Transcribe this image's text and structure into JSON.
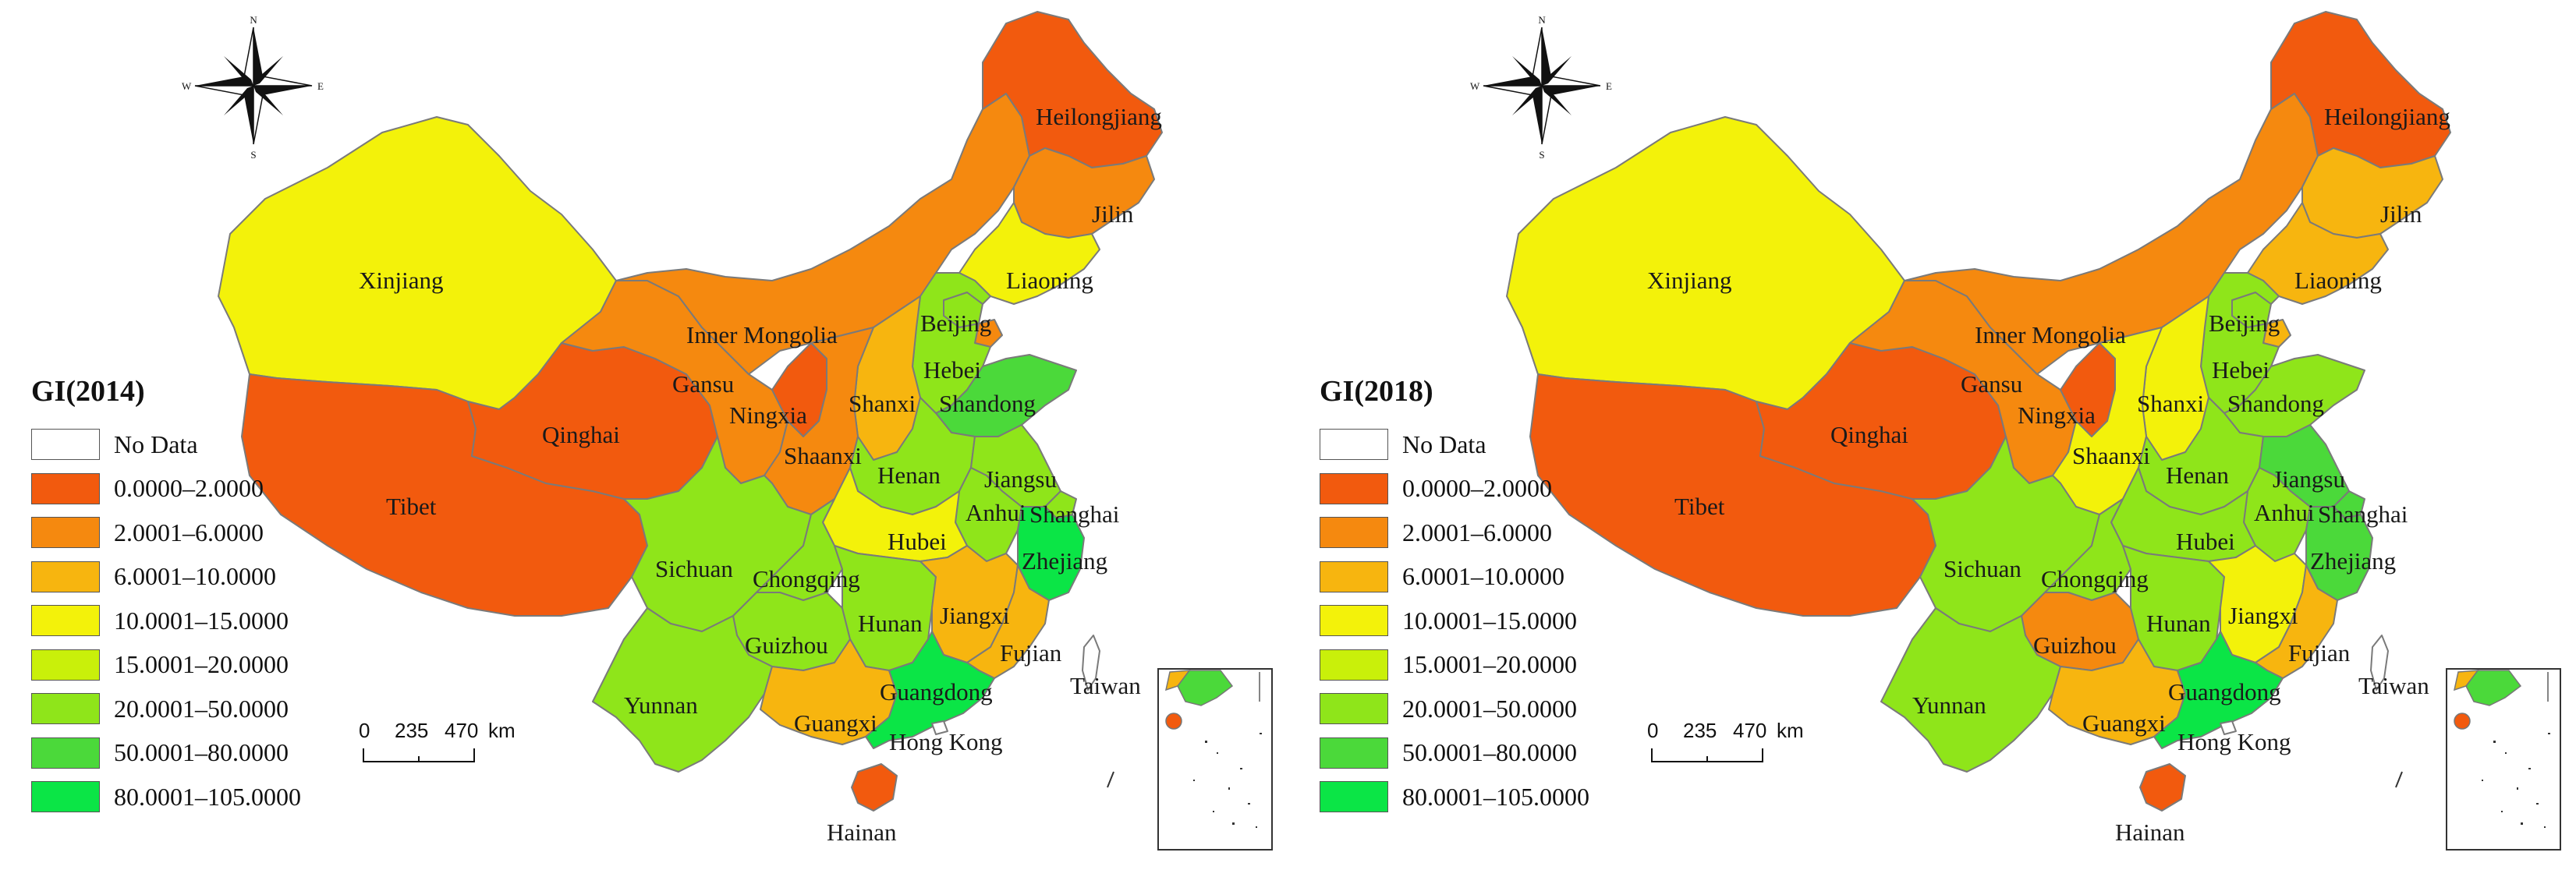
{
  "legend_items": [
    {
      "label": "No Data",
      "color": "#ffffff"
    },
    {
      "label": "0.0000–2.0000",
      "color": "#f25a0e"
    },
    {
      "label": "2.0001–6.0000",
      "color": "#f5890f"
    },
    {
      "label": "6.0001–10.0000",
      "color": "#f7b50f"
    },
    {
      "label": "10.0001–15.0000",
      "color": "#f3f20a"
    },
    {
      "label": "15.0001–20.0000",
      "color": "#c9f00a"
    },
    {
      "label": "20.0001–50.0000",
      "color": "#8fe51a"
    },
    {
      "label": "50.0001–80.0000",
      "color": "#4bd93a"
    },
    {
      "label": "80.0001–105.0000",
      "color": "#0be546"
    }
  ],
  "scale_bar": {
    "tick_0": "0",
    "tick_1": "235",
    "tick_2": "470",
    "unit": "km"
  },
  "north_arrow": {
    "n": "N",
    "s": "S",
    "e": "E",
    "w": "W",
    "icon": "compass-rose-icon"
  },
  "maps": [
    {
      "title": "GI(2014)",
      "provinces": {
        "Xinjiang": {
          "label": "Xinjiang",
          "class_index": 4
        },
        "Tibet": {
          "label": "Tibet",
          "class_index": 1
        },
        "Qinghai": {
          "label": "Qinghai",
          "class_index": 1
        },
        "Gansu": {
          "label": "Gansu",
          "class_index": 2
        },
        "InnerMongolia": {
          "label": "Inner Mongolia",
          "class_index": 2
        },
        "Heilongjiang": {
          "label": "Heilongjiang",
          "class_index": 1
        },
        "Jilin": {
          "label": "Jilin",
          "class_index": 2
        },
        "Liaoning": {
          "label": "Liaoning",
          "class_index": 4
        },
        "Beijing": {
          "label": "Beijing",
          "class_index": 6
        },
        "Hebei": {
          "label": "Hebei",
          "class_index": 6
        },
        "Tianjin": {
          "label": "",
          "class_index": 2
        },
        "Shanxi": {
          "label": "Shanxi",
          "class_index": 3
        },
        "Shandong": {
          "label": "Shandong",
          "class_index": 7
        },
        "Ningxia": {
          "label": "Ningxia",
          "class_index": 1
        },
        "Shaanxi": {
          "label": "Shaanxi",
          "class_index": 2
        },
        "Henan": {
          "label": "Henan",
          "class_index": 6
        },
        "Jiangsu": {
          "label": "Jiangsu",
          "class_index": 6
        },
        "Anhui": {
          "label": "Anhui",
          "class_index": 6
        },
        "Shanghai": {
          "label": "Shanghai",
          "class_index": 6
        },
        "Zhejiang": {
          "label": "Zhejiang",
          "class_index": 8
        },
        "Hubei": {
          "label": "Hubei",
          "class_index": 4
        },
        "Sichuan": {
          "label": "Sichuan",
          "class_index": 6
        },
        "Chongqing": {
          "label": "Chongqing",
          "class_index": 6
        },
        "Guizhou": {
          "label": "Guizhou",
          "class_index": 6
        },
        "Hunan": {
          "label": "Hunan",
          "class_index": 6
        },
        "Jiangxi": {
          "label": "Jiangxi",
          "class_index": 3
        },
        "Fujian": {
          "label": "Fujian",
          "class_index": 3
        },
        "Yunnan": {
          "label": "Yunnan",
          "class_index": 6
        },
        "Guangxi": {
          "label": "Guangxi",
          "class_index": 3
        },
        "Guangdong": {
          "label": "Guangdong",
          "class_index": 8
        },
        "HongKong": {
          "label": "Hong Kong",
          "class_index": 0
        },
        "Hainan": {
          "label": "Hainan",
          "class_index": 1
        },
        "Taiwan": {
          "label": "Taiwan",
          "class_index": 0
        }
      }
    },
    {
      "title": "GI(2018)",
      "provinces": {
        "Xinjiang": {
          "label": "Xinjiang",
          "class_index": 4
        },
        "Tibet": {
          "label": "Tibet",
          "class_index": 1
        },
        "Qinghai": {
          "label": "Qinghai",
          "class_index": 1
        },
        "Gansu": {
          "label": "Gansu",
          "class_index": 2
        },
        "InnerMongolia": {
          "label": "Inner Mongolia",
          "class_index": 2
        },
        "Heilongjiang": {
          "label": "Heilongjiang",
          "class_index": 1
        },
        "Jilin": {
          "label": "Jilin",
          "class_index": 3
        },
        "Liaoning": {
          "label": "Liaoning",
          "class_index": 3
        },
        "Beijing": {
          "label": "Beijing",
          "class_index": 6
        },
        "Hebei": {
          "label": "Hebei",
          "class_index": 6
        },
        "Tianjin": {
          "label": "",
          "class_index": 3
        },
        "Shanxi": {
          "label": "Shanxi",
          "class_index": 4
        },
        "Shandong": {
          "label": "Shandong",
          "class_index": 6
        },
        "Ningxia": {
          "label": "Ningxia",
          "class_index": 1
        },
        "Shaanxi": {
          "label": "Shaanxi",
          "class_index": 4
        },
        "Henan": {
          "label": "Henan",
          "class_index": 6
        },
        "Jiangsu": {
          "label": "Jiangsu",
          "class_index": 7
        },
        "Anhui": {
          "label": "Anhui",
          "class_index": 6
        },
        "Shanghai": {
          "label": "Shanghai",
          "class_index": 7
        },
        "Zhejiang": {
          "label": "Zhejiang",
          "class_index": 7
        },
        "Hubei": {
          "label": "Hubei",
          "class_index": 6
        },
        "Sichuan": {
          "label": "Sichuan",
          "class_index": 6
        },
        "Chongqing": {
          "label": "Chongqing",
          "class_index": 6
        },
        "Guizhou": {
          "label": "Guizhou",
          "class_index": 2
        },
        "Hunan": {
          "label": "Hunan",
          "class_index": 6
        },
        "Jiangxi": {
          "label": "Jiangxi",
          "class_index": 4
        },
        "Fujian": {
          "label": "Fujian",
          "class_index": 3
        },
        "Yunnan": {
          "label": "Yunnan",
          "class_index": 6
        },
        "Guangxi": {
          "label": "Guangxi",
          "class_index": 3
        },
        "Guangdong": {
          "label": "Guangdong",
          "class_index": 8
        },
        "HongKong": {
          "label": "Hong Kong",
          "class_index": 0
        },
        "Hainan": {
          "label": "Hainan",
          "class_index": 1
        },
        "Taiwan": {
          "label": "Taiwan",
          "class_index": 0
        }
      }
    }
  ]
}
